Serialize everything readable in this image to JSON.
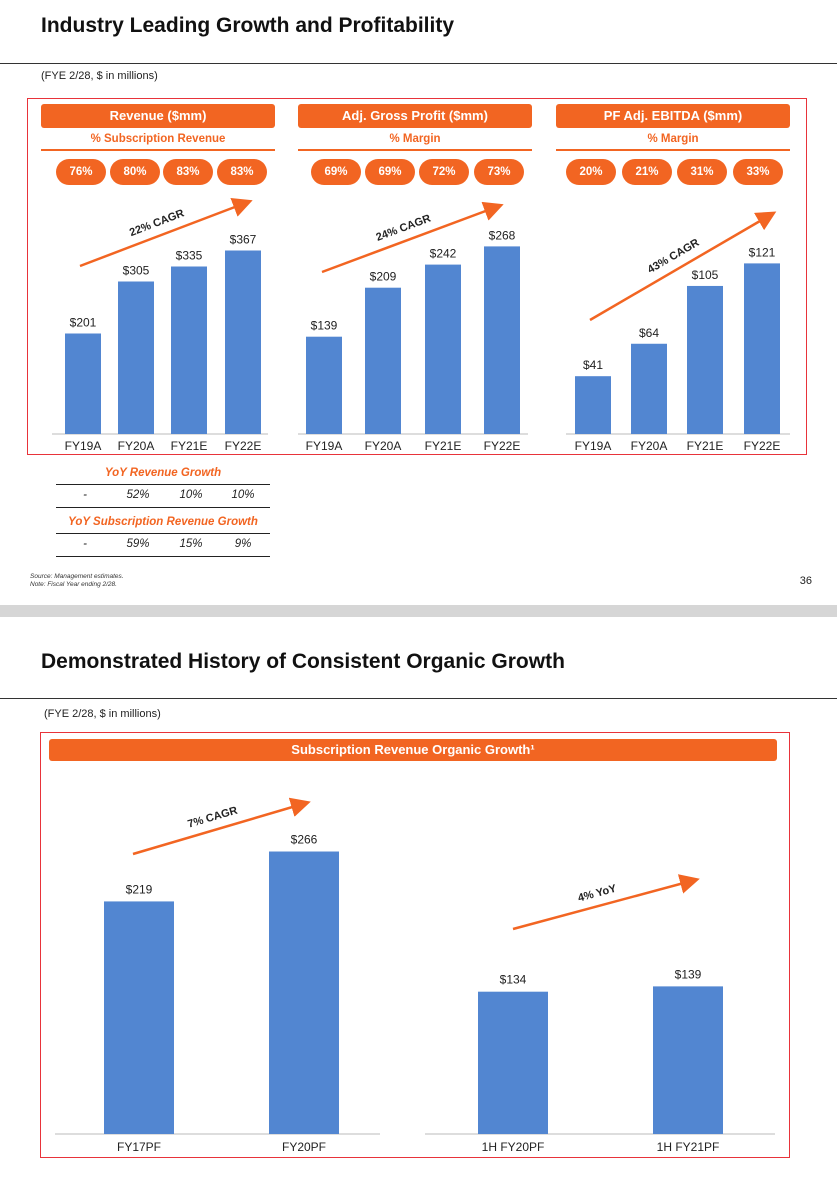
{
  "slide1": {
    "title": "Industry Leading Growth and Profitability",
    "subtitle": "(FYE 2/28, $ in millions)",
    "page_number": "36",
    "footnotes": [
      "Source: Management estimates.",
      "Note: Fiscal Year ending 2/28."
    ],
    "table": {
      "revenue_growth_title": "YoY Revenue Growth",
      "revenue_growth": [
        "-",
        "52%",
        "10%",
        "10%"
      ],
      "sub_growth_title": "YoY Subscription Revenue Growth",
      "sub_growth": [
        "-",
        "59%",
        "15%",
        "9%"
      ]
    }
  },
  "slide2": {
    "title": "Demonstrated History of Consistent Organic Growth",
    "subtitle": "(FYE 2/28, $ in millions)",
    "header": "Subscription Revenue Organic Growth¹"
  },
  "colors": {
    "accent": "#f26522",
    "bar": "#5286d1",
    "box": "#e8333a"
  },
  "chart_data": [
    {
      "type": "bar",
      "title": "Revenue ($mm)",
      "subtitle": "% Subscription Revenue",
      "pills": [
        "76%",
        "80%",
        "83%",
        "83%"
      ],
      "categories": [
        "FY19A",
        "FY20A",
        "FY21E",
        "FY22E"
      ],
      "values": [
        201,
        305,
        335,
        367
      ],
      "labels": [
        "$201",
        "$305",
        "$335",
        "$367"
      ],
      "cagr": "22% CAGR"
    },
    {
      "type": "bar",
      "title": "Adj. Gross Profit ($mm)",
      "subtitle": "% Margin",
      "pills": [
        "69%",
        "69%",
        "72%",
        "73%"
      ],
      "categories": [
        "FY19A",
        "FY20A",
        "FY21E",
        "FY22E"
      ],
      "values": [
        139,
        209,
        242,
        268
      ],
      "labels": [
        "$139",
        "$209",
        "$242",
        "$268"
      ],
      "cagr": "24% CAGR"
    },
    {
      "type": "bar",
      "title": "PF Adj. EBITDA ($mm)",
      "subtitle": "% Margin",
      "pills": [
        "20%",
        "21%",
        "31%",
        "33%"
      ],
      "categories": [
        "FY19A",
        "FY20A",
        "FY21E",
        "FY22E"
      ],
      "values": [
        41,
        64,
        105,
        121
      ],
      "labels": [
        "$41",
        "$64",
        "$105",
        "$121"
      ],
      "cagr": "43% CAGR"
    },
    {
      "type": "bar",
      "title": "Subscription Revenue Organic Growth¹",
      "categories": [
        "FY17PF",
        "FY20PF",
        "1H FY20PF",
        "1H FY21PF"
      ],
      "values": [
        219,
        266,
        134,
        139
      ],
      "labels": [
        "$219",
        "$266",
        "$134",
        "$139"
      ],
      "annotations": [
        "7% CAGR",
        "4% YoY"
      ]
    }
  ]
}
